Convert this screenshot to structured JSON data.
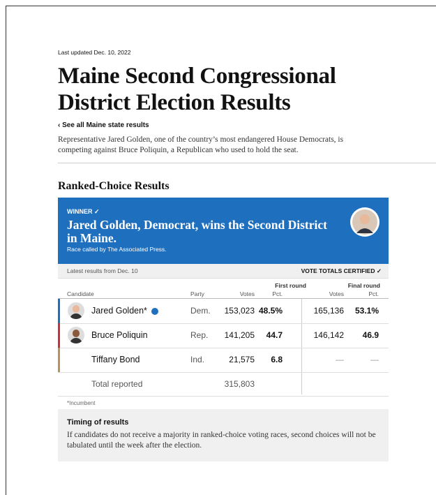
{
  "updated": "Last updated Dec. 10, 2022",
  "title": "Maine Second Congressional District Election Results",
  "back_link": "‹ See all Maine state results",
  "description": "Representative Jared Golden, one of the country’s most endangered House Democrats, is competing against Bruce Poliquin, a Republican who used to hold the seat.",
  "section_title": "Ranked-Choice Results",
  "winner": {
    "label": "WINNER ✓",
    "headline": "Jared Golden, Democrat, wins the Second District in Maine.",
    "credit": "Race called by The Associated Press."
  },
  "table": {
    "latest": "Latest results from Dec. 10",
    "certified": "VOTE TOTALS CERTIFIED ✓",
    "round_headers": [
      "First round",
      "Final round"
    ],
    "columns": [
      "Candidate",
      "Party",
      "Votes",
      "Pct.",
      "Votes",
      "Pct."
    ],
    "rows": [
      [
        "Jared Golden*",
        "Dem.",
        "153,023",
        "48.5%",
        "165,136",
        "53.1%"
      ],
      [
        "Bruce Poliquin",
        "Rep.",
        "141,205",
        "44.7",
        "146,142",
        "46.9"
      ],
      [
        "Tiffany Bond",
        "Ind.",
        "21,575",
        "6.8",
        "—",
        "—"
      ]
    ],
    "total": [
      "Total reported",
      "315,803"
    ]
  },
  "footnote": "*Incumbent",
  "timing": {
    "title": "Timing of results",
    "text": "If candidates do not receive a majority in ranked-choice voting races, second choices will not be tabulated until the week after the election."
  }
}
